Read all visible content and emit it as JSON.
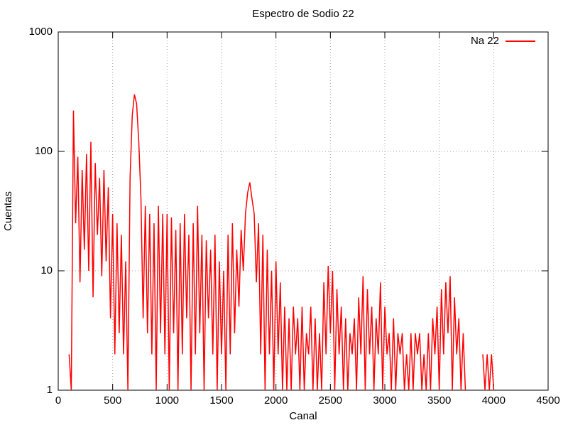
{
  "chart_data": {
    "type": "line",
    "title": "Espectro de Sodio 22",
    "xlabel": "Canal",
    "ylabel": "Cuentas",
    "x": [
      100,
      120,
      140,
      160,
      180,
      200,
      220,
      240,
      260,
      280,
      300,
      320,
      340,
      360,
      380,
      400,
      420,
      440,
      460,
      480,
      500,
      520,
      540,
      560,
      580,
      600,
      620,
      640,
      660,
      680,
      700,
      720,
      740,
      760,
      780,
      800,
      820,
      840,
      860,
      880,
      900,
      920,
      940,
      960,
      980,
      1000,
      1020,
      1040,
      1060,
      1080,
      1100,
      1120,
      1140,
      1160,
      1180,
      1200,
      1220,
      1240,
      1260,
      1280,
      1300,
      1320,
      1340,
      1360,
      1380,
      1400,
      1420,
      1440,
      1460,
      1480,
      1500,
      1520,
      1540,
      1560,
      1580,
      1600,
      1620,
      1640,
      1660,
      1680,
      1700,
      1720,
      1740,
      1760,
      1780,
      1800,
      1820,
      1840,
      1860,
      1880,
      1900,
      1920,
      1940,
      1960,
      1980,
      2000,
      2020,
      2040,
      2060,
      2080,
      2100,
      2120,
      2140,
      2160,
      2180,
      2200,
      2220,
      2240,
      2260,
      2280,
      2300,
      2320,
      2340,
      2360,
      2380,
      2400,
      2420,
      2440,
      2460,
      2480,
      2500,
      2520,
      2540,
      2560,
      2580,
      2600,
      2620,
      2640,
      2660,
      2680,
      2700,
      2720,
      2740,
      2760,
      2780,
      2800,
      2820,
      2840,
      2860,
      2880,
      2900,
      2920,
      2940,
      2960,
      2980,
      3000,
      3020,
      3040,
      3060,
      3080,
      3100,
      3120,
      3140,
      3160,
      3180,
      3200,
      3220,
      3240,
      3260,
      3280,
      3300,
      3320,
      3340,
      3360,
      3380,
      3400,
      3420,
      3440,
      3460,
      3480,
      3500,
      3520,
      3540,
      3560,
      3580,
      3600,
      3620,
      3640,
      3660,
      3680,
      3700,
      3720,
      3740,
      3760,
      3780,
      3800,
      3820,
      3840,
      3860,
      3880,
      3900,
      3920,
      3940,
      3960,
      3980,
      4000
    ],
    "series": [
      {
        "name": "Na 22",
        "color": "#ff0000",
        "values": [
          2,
          1,
          220,
          25,
          90,
          8,
          70,
          15,
          95,
          10,
          120,
          6,
          80,
          20,
          60,
          9,
          70,
          12,
          50,
          4,
          30,
          2,
          25,
          3,
          20,
          2,
          12,
          1,
          60,
          200,
          300,
          250,
          120,
          40,
          4,
          35,
          3,
          30,
          2,
          25,
          1,
          35,
          3,
          30,
          2,
          30,
          1,
          28,
          3,
          22,
          1,
          25,
          2,
          30,
          4,
          20,
          1,
          25,
          2,
          35,
          3,
          20,
          1,
          18,
          4,
          15,
          2,
          20,
          1,
          12,
          2,
          10,
          1,
          20,
          2,
          25,
          3,
          15,
          5,
          22,
          10,
          30,
          45,
          55,
          40,
          30,
          8,
          25,
          2,
          20,
          1,
          15,
          2,
          10,
          1,
          12,
          2,
          8,
          1,
          5,
          1,
          4,
          1,
          5,
          2,
          4,
          1,
          5,
          1,
          3,
          2,
          5,
          1,
          4,
          1,
          3,
          1,
          8,
          2,
          11,
          3,
          10,
          1,
          7,
          2,
          5,
          1,
          4,
          1,
          3,
          2,
          4,
          1,
          6,
          2,
          9,
          1,
          7,
          2,
          5,
          1,
          4,
          2,
          8,
          1,
          5,
          2,
          3,
          1,
          4,
          1,
          3,
          2,
          3,
          1,
          2,
          1,
          3,
          1,
          3,
          2,
          3,
          1,
          2,
          1,
          3,
          1,
          4,
          2,
          5,
          1,
          7,
          2,
          8,
          3,
          9,
          1,
          6,
          2,
          4,
          1,
          3,
          1,
          null,
          null,
          null,
          null,
          null,
          null,
          null,
          2,
          1,
          2,
          1,
          2,
          1
        ]
      }
    ],
    "xlim": [
      0,
      4500
    ],
    "xticks": [
      0,
      500,
      1000,
      1500,
      2000,
      2500,
      3000,
      3500,
      4000,
      4500
    ],
    "ylim": [
      1,
      1000
    ],
    "yticks": [
      1,
      10,
      100,
      1000
    ],
    "log_y": true,
    "grid": true,
    "legend": "top-right"
  }
}
